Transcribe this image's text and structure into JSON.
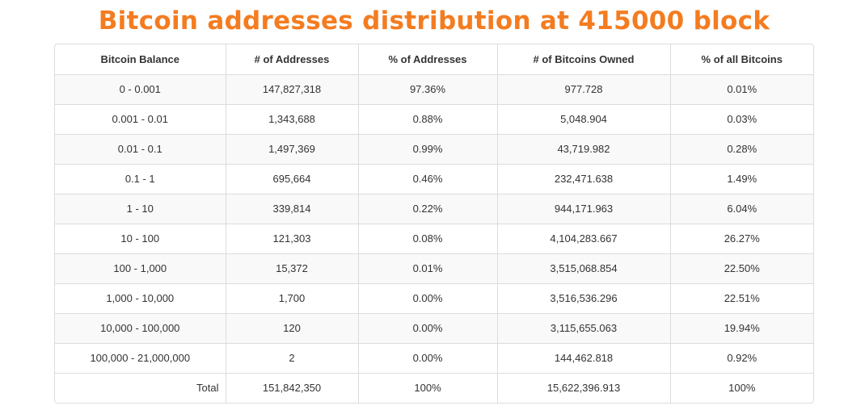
{
  "title": "Bitcoin addresses distribution at 415000 block",
  "chart_data": {
    "type": "table",
    "title": "Bitcoin addresses distribution at 415000 block",
    "columns": [
      "Bitcoin Balance",
      "# of Addresses",
      "% of Addresses",
      "# of Bitcoins Owned",
      "% of all Bitcoins"
    ],
    "rows": [
      [
        "0 - 0.001",
        "147,827,318",
        "97.36%",
        "977.728",
        "0.01%"
      ],
      [
        "0.001 - 0.01",
        "1,343,688",
        "0.88%",
        "5,048.904",
        "0.03%"
      ],
      [
        "0.01 - 0.1",
        "1,497,369",
        "0.99%",
        "43,719.982",
        "0.28%"
      ],
      [
        "0.1 - 1",
        "695,664",
        "0.46%",
        "232,471.638",
        "1.49%"
      ],
      [
        "1 - 10",
        "339,814",
        "0.22%",
        "944,171.963",
        "6.04%"
      ],
      [
        "10 - 100",
        "121,303",
        "0.08%",
        "4,104,283.667",
        "26.27%"
      ],
      [
        "100 - 1,000",
        "15,372",
        "0.01%",
        "3,515,068.854",
        "22.50%"
      ],
      [
        "1,000 - 10,000",
        "1,700",
        "0.00%",
        "3,516,536.296",
        "22.51%"
      ],
      [
        "10,000 - 100,000",
        "120",
        "0.00%",
        "3,115,655.063",
        "19.94%"
      ],
      [
        "100,000 - 21,000,000",
        "2",
        "0.00%",
        "144,462.818",
        "0.92%"
      ]
    ],
    "total": [
      "Total",
      "151,842,350",
      "100%",
      "15,622,396.913",
      "100%"
    ]
  },
  "colors": {
    "title": "#f47c20",
    "border": "#dcdcdc",
    "stripe": "#f9f9f9",
    "text": "#333333"
  }
}
